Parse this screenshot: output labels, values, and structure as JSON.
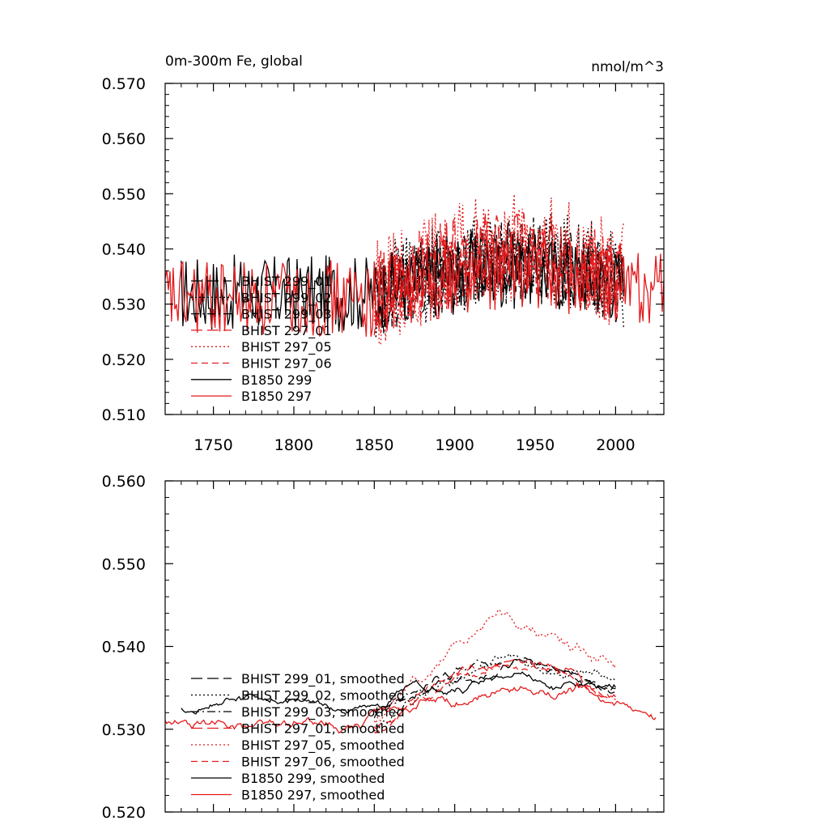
{
  "colors": {
    "black": "#000000",
    "red": "#e41a1c"
  },
  "chart_data": [
    {
      "type": "line",
      "title": "0m-300m Fe, global",
      "units": "nmol/m^3",
      "xlabel": "",
      "ylabel": "",
      "xlim": [
        1720,
        2030
      ],
      "ylim": [
        0.51,
        0.57
      ],
      "x_ticks": [
        "1750",
        "1800",
        "1850",
        "1900",
        "1950",
        "2000"
      ],
      "y_ticks": [
        "0.570",
        "0.560",
        "0.550",
        "0.540",
        "0.530",
        "0.520",
        "0.510"
      ],
      "legend_position": "lower-left",
      "series": [
        {
          "name": "BHIST 299_01",
          "color": "#000000",
          "dash": "long-dash",
          "start": 1850,
          "end": 2005,
          "base": 0.532,
          "trend": 0.006,
          "noise": 0.007,
          "seed": 11
        },
        {
          "name": "BHIST 299_02",
          "color": "#000000",
          "dash": "dot",
          "start": 1850,
          "end": 2005,
          "base": 0.531,
          "trend": 0.008,
          "noise": 0.009,
          "seed": 12
        },
        {
          "name": "BHIST 299_03",
          "color": "#000000",
          "dash": "dash-dot",
          "start": 1850,
          "end": 2005,
          "base": 0.531,
          "trend": 0.007,
          "noise": 0.008,
          "seed": 13
        },
        {
          "name": "BHIST 297_01",
          "color": "#e41a1c",
          "dash": "long-dash",
          "start": 1850,
          "end": 2005,
          "base": 0.532,
          "trend": 0.007,
          "noise": 0.008,
          "seed": 14
        },
        {
          "name": "BHIST 297_05",
          "color": "#e41a1c",
          "dash": "dot",
          "start": 1850,
          "end": 2005,
          "base": 0.532,
          "trend": 0.008,
          "noise": 0.01,
          "seed": 15
        },
        {
          "name": "BHIST 297_06",
          "color": "#e41a1c",
          "dash": "dash",
          "start": 1850,
          "end": 2005,
          "base": 0.531,
          "trend": 0.007,
          "noise": 0.008,
          "seed": 16
        },
        {
          "name": "B1850 299",
          "color": "#000000",
          "dash": "solid",
          "start": 1730,
          "end": 2005,
          "base": 0.532,
          "trend": 0.004,
          "noise": 0.007,
          "seed": 17
        },
        {
          "name": "B1850 297",
          "color": "#e41a1c",
          "dash": "solid",
          "start": 1720,
          "end": 2030,
          "base": 0.531,
          "trend": 0.005,
          "noise": 0.007,
          "seed": 18
        }
      ]
    },
    {
      "type": "line",
      "title": "",
      "xlabel": "",
      "ylabel": "",
      "xlim": [
        1720,
        2030
      ],
      "ylim": [
        0.52,
        0.56
      ],
      "y_ticks": [
        "0.560",
        "0.550",
        "0.540",
        "0.530",
        "0.520"
      ],
      "legend_position": "lower-left",
      "series": [
        {
          "name": "BHIST 299_01, smoothed",
          "color": "#000000",
          "dash": "long-dash",
          "start": 1850,
          "end": 2000,
          "base": 0.531,
          "trend": 0.007,
          "noise": 0.004,
          "seed": 21
        },
        {
          "name": "BHIST 299_02, smoothed",
          "color": "#000000",
          "dash": "dot",
          "start": 1850,
          "end": 2000,
          "base": 0.531,
          "trend": 0.007,
          "noise": 0.005,
          "seed": 22
        },
        {
          "name": "BHIST 299_03, smoothed",
          "color": "#000000",
          "dash": "dash-dot",
          "start": 1850,
          "end": 2000,
          "base": 0.531,
          "trend": 0.007,
          "noise": 0.004,
          "seed": 23
        },
        {
          "name": "BHIST 297_01, smoothed",
          "color": "#e41a1c",
          "dash": "long-dash",
          "start": 1850,
          "end": 2000,
          "base": 0.53,
          "trend": 0.008,
          "noise": 0.004,
          "seed": 24
        },
        {
          "name": "BHIST 297_05, smoothed",
          "color": "#e41a1c",
          "dash": "dot",
          "start": 1850,
          "end": 2000,
          "base": 0.531,
          "trend": 0.012,
          "noise": 0.006,
          "seed": 25
        },
        {
          "name": "BHIST 297_06, smoothed",
          "color": "#e41a1c",
          "dash": "dash",
          "start": 1850,
          "end": 2000,
          "base": 0.53,
          "trend": 0.008,
          "noise": 0.004,
          "seed": 26
        },
        {
          "name": "B1850 299, smoothed",
          "color": "#000000",
          "dash": "solid",
          "start": 1730,
          "end": 2000,
          "base": 0.533,
          "trend": 0.003,
          "noise": 0.004,
          "seed": 27
        },
        {
          "name": "B1850 297, smoothed",
          "color": "#e41a1c",
          "dash": "solid",
          "start": 1720,
          "end": 2025,
          "base": 0.531,
          "trend": 0.004,
          "noise": 0.005,
          "seed": 28
        }
      ]
    }
  ]
}
